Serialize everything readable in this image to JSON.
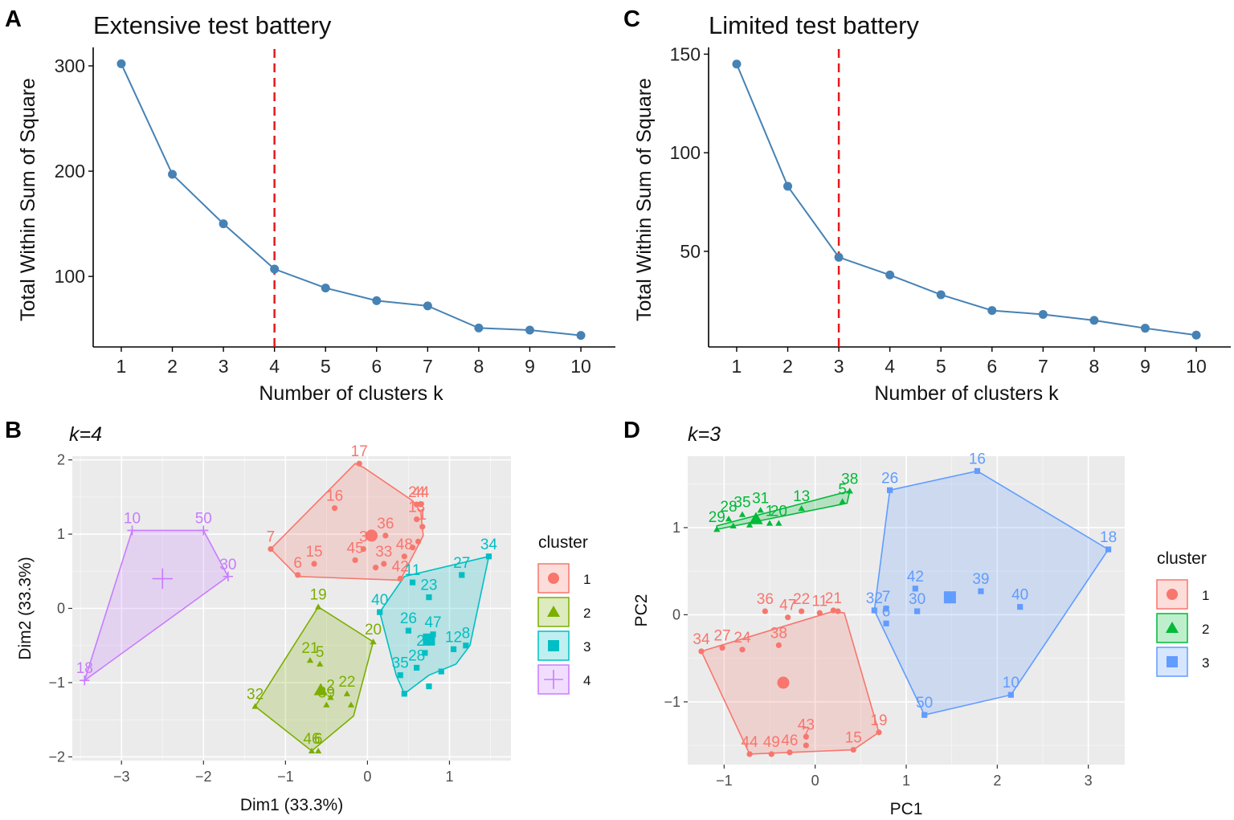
{
  "chart_data": [
    {
      "id": "A",
      "type": "line",
      "panel_letter": "A",
      "title": "Extensive test battery",
      "xlabel": "Number of clusters k",
      "ylabel": "Total Within Sum of Square",
      "categories": [
        "1",
        "2",
        "3",
        "4",
        "5",
        "6",
        "7",
        "8",
        "9",
        "10"
      ],
      "x": [
        1,
        2,
        3,
        4,
        5,
        6,
        7,
        8,
        9,
        10
      ],
      "values": [
        302,
        197,
        150,
        107,
        89,
        77,
        72,
        51,
        49,
        44
      ],
      "yticks": [
        100,
        200,
        300
      ],
      "ylim": [
        33,
        313
      ],
      "xlim": [
        0.45,
        10.55
      ],
      "optimal_k": 4,
      "line_color": "#4682b4",
      "vline_color": "#e41a1c"
    },
    {
      "id": "C",
      "type": "line",
      "panel_letter": "C",
      "title": "Limited test battery",
      "xlabel": "Number of clusters k",
      "ylabel": "Total Within Sum of Square",
      "categories": [
        "1",
        "2",
        "3",
        "4",
        "5",
        "6",
        "7",
        "8",
        "9",
        "10"
      ],
      "x": [
        1,
        2,
        3,
        4,
        5,
        6,
        7,
        8,
        9,
        10
      ],
      "values": [
        145,
        83,
        47,
        38,
        28,
        20,
        18,
        15,
        11,
        7.5
      ],
      "yticks": [
        50,
        100,
        150
      ],
      "ylim": [
        1.5,
        151
      ],
      "xlim": [
        0.45,
        10.55
      ],
      "optimal_k": 3,
      "line_color": "#4682b4",
      "vline_color": "#e41a1c"
    },
    {
      "id": "B",
      "type": "scatter",
      "panel_letter": "B",
      "title": "k=4",
      "xlabel": "Dim1 (33.3%)",
      "ylabel": "Dim2 (33.3%)",
      "xlim": [
        -3.6,
        1.75
      ],
      "ylim": [
        -2.05,
        2.05
      ],
      "xticks": [
        -3,
        -2,
        -1,
        0,
        1
      ],
      "yticks": [
        -2,
        -1,
        0,
        1,
        2
      ],
      "legend_title": "cluster",
      "legend_position": "right",
      "clusters": [
        {
          "name": "1",
          "color": "#f8766d",
          "shape": "circle",
          "centroid": [
            0.05,
            0.98
          ],
          "hull": [
            [
              -1.18,
              0.8
            ],
            [
              -0.85,
              0.43
            ],
            [
              0.4,
              0.38
            ],
            [
              0.68,
              0.98
            ],
            [
              0.65,
              1.3
            ],
            [
              0.55,
              1.45
            ],
            [
              -0.05,
              1.9
            ],
            [
              -0.15,
              1.95
            ]
          ],
          "points": [
            {
              "x": -0.1,
              "y": 1.95,
              "label": "17"
            },
            {
              "x": -0.4,
              "y": 1.35,
              "label": "16"
            },
            {
              "x": 0.6,
              "y": 1.4,
              "label": "24"
            },
            {
              "x": 0.65,
              "y": 1.4,
              "label": "44"
            },
            {
              "x": 0.6,
              "y": 1.2,
              "label": "13"
            },
            {
              "x": 0.67,
              "y": 1.1,
              "label": "1"
            },
            {
              "x": -1.18,
              "y": 0.8,
              "label": "7"
            },
            {
              "x": -0.65,
              "y": 0.6,
              "label": "15"
            },
            {
              "x": -0.85,
              "y": 0.45,
              "label": "6"
            },
            {
              "x": -0.05,
              "y": 0.8,
              "label": "3"
            },
            {
              "x": 0.22,
              "y": 0.98,
              "label": "36"
            },
            {
              "x": -0.15,
              "y": 0.65,
              "label": "45"
            },
            {
              "x": 0.2,
              "y": 0.6,
              "label": "33"
            },
            {
              "x": 0.45,
              "y": 0.7,
              "label": "48"
            },
            {
              "x": 0.4,
              "y": 0.4,
              "label": "42"
            },
            {
              "x": 0.62,
              "y": 0.9,
              "label": ""
            },
            {
              "x": 0.55,
              "y": 0.82,
              "label": ""
            },
            {
              "x": 0.1,
              "y": 0.55,
              "label": ""
            }
          ]
        },
        {
          "name": "2",
          "color": "#7cae00",
          "shape": "triangle",
          "centroid": [
            -0.57,
            -1.1
          ],
          "hull": [
            [
              -0.6,
              0.02
            ],
            [
              0.07,
              -0.45
            ],
            [
              -0.17,
              -1.45
            ],
            [
              -0.68,
              -1.92
            ],
            [
              -1.37,
              -1.32
            ]
          ],
          "points": [
            {
              "x": -0.6,
              "y": 0.02,
              "label": "19"
            },
            {
              "x": 0.07,
              "y": -0.45,
              "label": "20"
            },
            {
              "x": -0.7,
              "y": -0.7,
              "label": "21"
            },
            {
              "x": -0.58,
              "y": -0.75,
              "label": "5"
            },
            {
              "x": -1.37,
              "y": -1.32,
              "label": "32"
            },
            {
              "x": -0.45,
              "y": -1.2,
              "label": "2"
            },
            {
              "x": -0.25,
              "y": -1.15,
              "label": "22"
            },
            {
              "x": -0.5,
              "y": -1.3,
              "label": "39"
            },
            {
              "x": -0.68,
              "y": -1.92,
              "label": "46"
            },
            {
              "x": -0.6,
              "y": -1.92,
              "label": "6"
            },
            {
              "x": -0.2,
              "y": -1.3,
              "label": ""
            }
          ]
        },
        {
          "name": "3",
          "color": "#00bfc4",
          "shape": "square",
          "centroid": [
            0.75,
            -0.42
          ],
          "hull": [
            [
              1.48,
              0.7
            ],
            [
              0.45,
              0.43
            ],
            [
              0.15,
              -0.05
            ],
            [
              0.35,
              -0.9
            ],
            [
              0.45,
              -1.15
            ],
            [
              0.75,
              -0.9
            ],
            [
              1.08,
              -0.75
            ],
            [
              1.25,
              -0.5
            ]
          ],
          "points": [
            {
              "x": 1.48,
              "y": 0.7,
              "label": "34"
            },
            {
              "x": 1.15,
              "y": 0.45,
              "label": "27"
            },
            {
              "x": 0.55,
              "y": 0.35,
              "label": "11"
            },
            {
              "x": 0.75,
              "y": 0.15,
              "label": "23"
            },
            {
              "x": 0.15,
              "y": -0.05,
              "label": "40"
            },
            {
              "x": 0.5,
              "y": -0.3,
              "label": "26"
            },
            {
              "x": 0.8,
              "y": -0.35,
              "label": "47"
            },
            {
              "x": 1.2,
              "y": -0.5,
              "label": "8"
            },
            {
              "x": 1.05,
              "y": -0.55,
              "label": "12"
            },
            {
              "x": 0.7,
              "y": -0.6,
              "label": "29"
            },
            {
              "x": 0.6,
              "y": -0.8,
              "label": "28"
            },
            {
              "x": 0.4,
              "y": -0.9,
              "label": "35"
            },
            {
              "x": 0.45,
              "y": -1.15,
              "label": ""
            },
            {
              "x": 0.75,
              "y": -1.05,
              "label": ""
            },
            {
              "x": 0.9,
              "y": -0.85,
              "label": ""
            }
          ]
        },
        {
          "name": "4",
          "color": "#c77cff",
          "shape": "plus",
          "centroid": [
            -2.5,
            0.4
          ],
          "hull": [
            [
              -2.87,
              1.05
            ],
            [
              -2.0,
              1.05
            ],
            [
              -1.7,
              0.43
            ],
            [
              -3.45,
              -0.97
            ]
          ],
          "points": [
            {
              "x": -2.87,
              "y": 1.05,
              "label": "10"
            },
            {
              "x": -2.0,
              "y": 1.05,
              "label": "50"
            },
            {
              "x": -1.7,
              "y": 0.43,
              "label": "30"
            },
            {
              "x": -3.45,
              "y": -0.97,
              "label": "18"
            }
          ]
        }
      ]
    },
    {
      "id": "D",
      "type": "scatter",
      "panel_letter": "D",
      "title": "k=3",
      "xlabel": "PC1",
      "ylabel": "PC2",
      "xlim": [
        -1.4,
        3.4
      ],
      "ylim": [
        -1.72,
        1.82
      ],
      "xticks": [
        -1,
        0,
        1,
        2,
        3
      ],
      "yticks": [
        -1,
        0,
        1
      ],
      "legend_title": "cluster",
      "legend_position": "right",
      "clusters": [
        {
          "name": "1",
          "color": "#f8766d",
          "shape": "circle",
          "centroid": [
            -0.35,
            -0.78
          ],
          "hull": [
            [
              -1.25,
              -0.42
            ],
            [
              0.2,
              0.04
            ],
            [
              0.32,
              0.02
            ],
            [
              0.7,
              -1.35
            ],
            [
              0.42,
              -1.55
            ],
            [
              -0.72,
              -1.6
            ]
          ],
          "points": [
            {
              "x": 0.2,
              "y": 0.05,
              "label": "21"
            },
            {
              "x": -0.55,
              "y": 0.04,
              "label": "36"
            },
            {
              "x": -0.15,
              "y": 0.04,
              "label": "22"
            },
            {
              "x": 0.05,
              "y": 0.02,
              "label": "11"
            },
            {
              "x": -0.3,
              "y": -0.03,
              "label": "47"
            },
            {
              "x": -1.25,
              "y": -0.42,
              "label": "34"
            },
            {
              "x": -1.02,
              "y": -0.38,
              "label": "27"
            },
            {
              "x": -0.8,
              "y": -0.4,
              "label": "24"
            },
            {
              "x": -0.4,
              "y": -0.35,
              "label": "38"
            },
            {
              "x": 0.25,
              "y": 0.04,
              "label": ""
            },
            {
              "x": 0.7,
              "y": -1.35,
              "label": "19"
            },
            {
              "x": 0.42,
              "y": -1.55,
              "label": "15"
            },
            {
              "x": -0.1,
              "y": -1.4,
              "label": "43"
            },
            {
              "x": -0.72,
              "y": -1.6,
              "label": "44"
            },
            {
              "x": -0.48,
              "y": -1.6,
              "label": "49"
            },
            {
              "x": -0.28,
              "y": -1.58,
              "label": "46"
            },
            {
              "x": -0.1,
              "y": -1.5,
              "label": "7"
            }
          ]
        },
        {
          "name": "2",
          "color": "#00ba38",
          "shape": "triangle",
          "centroid": [
            -0.65,
            1.1
          ],
          "hull": [
            [
              -1.08,
              0.98
            ],
            [
              0.35,
              1.28
            ],
            [
              0.38,
              1.42
            ],
            [
              -1.08,
              1.02
            ]
          ],
          "points": [
            {
              "x": 0.38,
              "y": 1.42,
              "label": "38"
            },
            {
              "x": 0.3,
              "y": 1.3,
              "label": "5"
            },
            {
              "x": -0.15,
              "y": 1.22,
              "label": "13"
            },
            {
              "x": -0.6,
              "y": 1.2,
              "label": "31"
            },
            {
              "x": -0.8,
              "y": 1.15,
              "label": "35"
            },
            {
              "x": -0.95,
              "y": 1.1,
              "label": "28"
            },
            {
              "x": -1.08,
              "y": 0.98,
              "label": "29"
            },
            {
              "x": -0.5,
              "y": 1.05,
              "label": "1"
            },
            {
              "x": -0.4,
              "y": 1.05,
              "label": "20"
            },
            {
              "x": -0.9,
              "y": 1.02,
              "label": ""
            },
            {
              "x": -0.72,
              "y": 1.03,
              "label": ""
            }
          ]
        },
        {
          "name": "3",
          "color": "#619cff",
          "shape": "square",
          "centroid": [
            1.48,
            0.2
          ],
          "hull": [
            [
              0.82,
              1.43
            ],
            [
              1.78,
              1.65
            ],
            [
              3.22,
              0.75
            ],
            [
              2.15,
              -0.92
            ],
            [
              1.2,
              -1.15
            ],
            [
              0.65,
              0.05
            ]
          ],
          "points": [
            {
              "x": 0.82,
              "y": 1.43,
              "label": "26"
            },
            {
              "x": 1.78,
              "y": 1.65,
              "label": "16"
            },
            {
              "x": 3.22,
              "y": 0.75,
              "label": "18"
            },
            {
              "x": 1.1,
              "y": 0.3,
              "label": "42"
            },
            {
              "x": 1.82,
              "y": 0.27,
              "label": "39"
            },
            {
              "x": 2.25,
              "y": 0.09,
              "label": "40"
            },
            {
              "x": 0.65,
              "y": 0.05,
              "label": "32"
            },
            {
              "x": 0.78,
              "y": 0.07,
              "label": "7"
            },
            {
              "x": 1.12,
              "y": 0.04,
              "label": "30"
            },
            {
              "x": 0.78,
              "y": -0.1,
              "label": "6"
            },
            {
              "x": 2.15,
              "y": -0.92,
              "label": "10"
            },
            {
              "x": 1.2,
              "y": -1.15,
              "label": "50"
            }
          ]
        }
      ]
    }
  ]
}
